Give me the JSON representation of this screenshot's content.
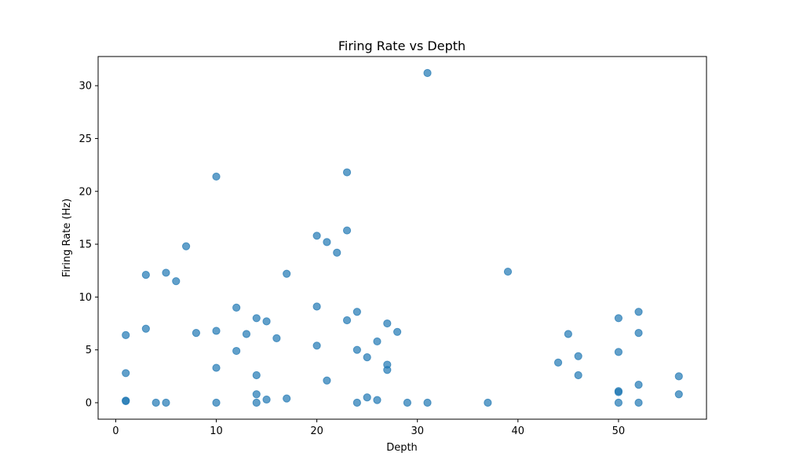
{
  "chart_data": {
    "type": "scatter",
    "title": "Firing Rate vs Depth",
    "xlabel": "Depth",
    "ylabel": "Firing Rate (Hz)",
    "xlim": [
      -1.75,
      58.75
    ],
    "ylim": [
      -1.56,
      32.76
    ],
    "xticks": [
      0,
      10,
      20,
      30,
      40,
      50
    ],
    "yticks": [
      0,
      5,
      10,
      15,
      20,
      25,
      30
    ],
    "grid": false,
    "marker_color": "#1f77b4",
    "marker_alpha": 0.7,
    "points": [
      [
        1,
        6.4
      ],
      [
        1,
        2.8
      ],
      [
        1,
        0.2
      ],
      [
        1,
        0.15
      ],
      [
        3,
        12.1
      ],
      [
        3,
        7.0
      ],
      [
        4,
        0.0
      ],
      [
        5,
        12.3
      ],
      [
        5,
        0.0
      ],
      [
        6,
        11.5
      ],
      [
        7,
        14.8
      ],
      [
        8,
        6.6
      ],
      [
        10,
        21.4
      ],
      [
        10,
        6.8
      ],
      [
        10,
        3.3
      ],
      [
        10,
        0.0
      ],
      [
        12,
        9.0
      ],
      [
        12,
        4.9
      ],
      [
        13,
        6.5
      ],
      [
        14,
        8.0
      ],
      [
        14,
        2.6
      ],
      [
        14,
        0.8
      ],
      [
        14,
        0.0
      ],
      [
        15,
        7.7
      ],
      [
        15,
        0.3
      ],
      [
        16,
        6.1
      ],
      [
        17,
        12.2
      ],
      [
        17,
        0.4
      ],
      [
        20,
        15.8
      ],
      [
        20,
        9.1
      ],
      [
        20,
        5.4
      ],
      [
        21,
        15.2
      ],
      [
        21,
        2.1
      ],
      [
        22,
        14.2
      ],
      [
        23,
        21.8
      ],
      [
        23,
        16.3
      ],
      [
        23,
        7.8
      ],
      [
        24,
        8.6
      ],
      [
        24,
        5.0
      ],
      [
        24,
        0.0
      ],
      [
        25,
        4.3
      ],
      [
        25,
        0.5
      ],
      [
        26,
        5.8
      ],
      [
        26,
        0.25
      ],
      [
        27,
        7.5
      ],
      [
        27,
        3.6
      ],
      [
        27,
        3.1
      ],
      [
        28,
        6.7
      ],
      [
        29,
        0.0
      ],
      [
        31,
        31.2
      ],
      [
        31,
        0.0
      ],
      [
        37,
        0.0
      ],
      [
        39,
        12.4
      ],
      [
        44,
        3.8
      ],
      [
        45,
        6.5
      ],
      [
        46,
        4.4
      ],
      [
        46,
        2.6
      ],
      [
        50,
        8.0
      ],
      [
        50,
        4.8
      ],
      [
        50,
        1.1
      ],
      [
        50,
        1.0
      ],
      [
        50,
        0.0
      ],
      [
        52,
        8.6
      ],
      [
        52,
        6.6
      ],
      [
        52,
        1.7
      ],
      [
        52,
        0.0
      ],
      [
        56,
        2.5
      ],
      [
        56,
        0.8
      ]
    ]
  }
}
